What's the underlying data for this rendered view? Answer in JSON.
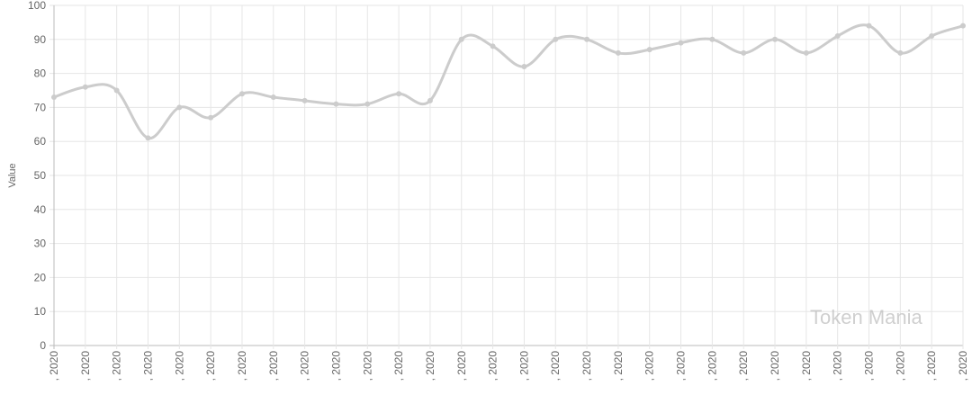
{
  "chart_data": {
    "type": "line",
    "title": "",
    "xlabel": "",
    "ylabel": "Value",
    "ylim": [
      0,
      100
    ],
    "yticks": [
      0,
      10,
      20,
      30,
      40,
      50,
      60,
      70,
      80,
      90,
      100
    ],
    "grid": true,
    "line_color": "#cccccc",
    "categories": [
      ", 2020",
      ", 2020",
      ", 2020",
      ", 2020",
      ", 2020",
      ", 2020",
      ", 2020",
      ", 2020",
      ", 2020",
      ", 2020",
      ", 2020",
      ", 2020",
      ", 2020",
      ", 2020",
      ", 2020",
      ", 2020",
      ", 2020",
      ", 2020",
      ", 2020",
      ", 2020",
      ", 2020",
      ", 2020",
      ", 2020",
      ", 2020",
      ", 2020",
      ", 2020",
      ", 2020",
      ", 2020",
      ", 2020",
      ", 2020"
    ],
    "values": [
      73,
      76,
      75,
      61,
      70,
      67,
      74,
      73,
      72,
      71,
      71,
      74,
      72,
      90,
      88,
      82,
      90,
      90,
      86,
      87,
      89,
      90,
      86,
      90,
      86,
      91,
      94,
      86,
      91,
      94
    ]
  },
  "watermark": "Token Mania"
}
